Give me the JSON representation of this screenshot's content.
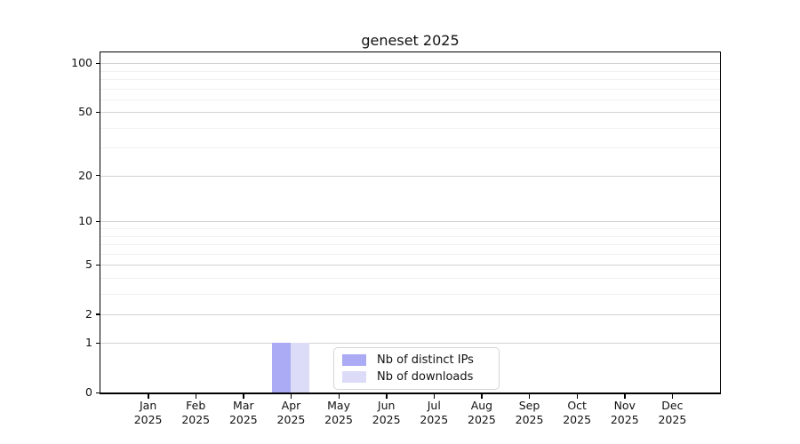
{
  "chart_data": {
    "type": "bar",
    "title": "geneset 2025",
    "categories": [
      "Jan 2025",
      "Feb 2025",
      "Mar 2025",
      "Apr 2025",
      "May 2025",
      "Jun 2025",
      "Jul 2025",
      "Aug 2025",
      "Sep 2025",
      "Oct 2025",
      "Nov 2025",
      "Dec 2025"
    ],
    "series": [
      {
        "name": "Nb of distinct IPs",
        "color": "#aaaaf5",
        "values": [
          0,
          0,
          0,
          1,
          0,
          0,
          0,
          0,
          0,
          0,
          0,
          0
        ]
      },
      {
        "name": "Nb of downloads",
        "color": "#dcdcf8",
        "values": [
          0,
          0,
          0,
          1,
          0,
          0,
          0,
          0,
          0,
          0,
          0,
          0
        ]
      }
    ],
    "xlabel": "",
    "ylabel": "",
    "yscale": "symlog-log1p",
    "ylim": [
      0,
      117
    ],
    "y_ticks": [
      0,
      1,
      2,
      5,
      10,
      20,
      50,
      100
    ],
    "y_minor_gridlines": [
      3,
      4,
      6,
      7,
      8,
      9,
      30,
      40,
      60,
      70,
      80,
      90
    ],
    "grid": "horizontal",
    "legend_position": "bottom-center-inside"
  },
  "colors": {
    "bar_distinct_ips": "#aaaaf5",
    "bar_downloads": "#dcdcf8",
    "major_grid": "#d2d2d2",
    "minor_grid": "#f1f1f1",
    "axis": "#000000",
    "text": "#111111",
    "background": "#ffffff",
    "legend_border": "#d4d4d4"
  }
}
